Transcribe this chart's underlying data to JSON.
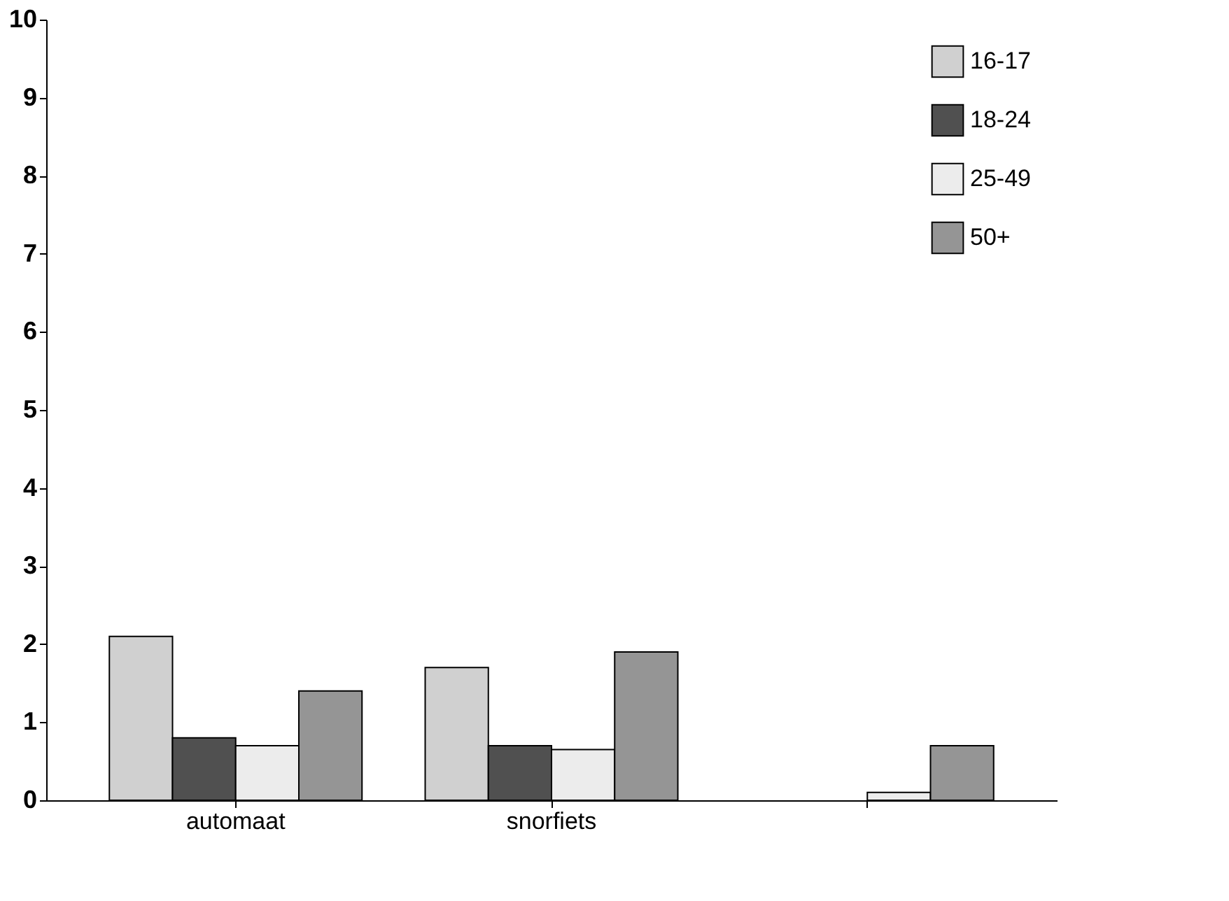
{
  "chart_data": {
    "type": "bar",
    "categories": [
      "automaat",
      "snorfiets",
      null
    ],
    "series": [
      {
        "name": "16-17",
        "color": "#d0d0d0",
        "values": [
          2.1,
          1.7,
          null
        ]
      },
      {
        "name": "18-24",
        "color": "#505050",
        "values": [
          0.8,
          0.7,
          null
        ]
      },
      {
        "name": "25-49",
        "color": "#ececec",
        "values": [
          0.7,
          0.65,
          0.1
        ]
      },
      {
        "name": "50+",
        "color": "#959595",
        "values": [
          1.4,
          1.9,
          0.7
        ]
      }
    ],
    "ylim": [
      0,
      10
    ],
    "yticks": [
      0,
      1,
      2,
      3,
      4,
      5,
      6,
      7,
      8,
      9,
      10
    ],
    "grid": false,
    "legend": "top right"
  }
}
